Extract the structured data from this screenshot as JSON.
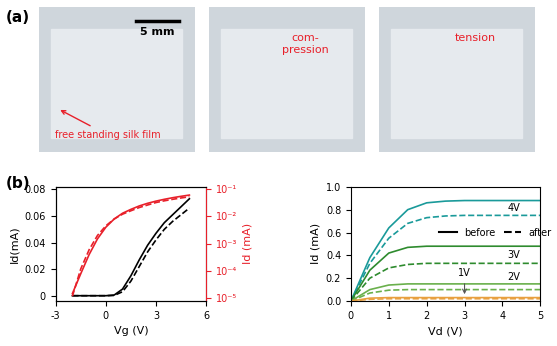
{
  "panel_labels": [
    "(a)",
    "(b)"
  ],
  "photos": [
    {
      "annotations": [
        "5 mm",
        "free standing silk film"
      ]
    },
    {
      "annotations": [
        "com-\npression"
      ]
    },
    {
      "annotations": [
        "tension"
      ]
    }
  ],
  "chart_data": [
    {
      "type": "line",
      "x_label": "Vg (V)",
      "y_label": "Id(mA)",
      "y2_label": "Id (mA)",
      "log": "y2",
      "xlim": [
        -3,
        6
      ],
      "xticks": [
        -3,
        0,
        3,
        6
      ],
      "ylim": [
        -0.004,
        0.082
      ],
      "yticks": [
        0,
        0.02,
        0.04,
        0.06,
        0.08
      ],
      "y2lim": [
        8e-06,
        0.12
      ],
      "y2ticks": [
        {
          "value": 1e-05,
          "label": "10⁻⁵"
        },
        {
          "value": 0.0001,
          "label": "10⁻⁴"
        },
        {
          "value": 0.001,
          "label": "10⁻³"
        },
        {
          "value": 0.01,
          "label": "10⁻²"
        },
        {
          "value": 0.1,
          "label": "10⁻¹"
        }
      ],
      "x": [
        -2,
        -1.5,
        -1,
        -0.5,
        0,
        0.5,
        1,
        1.5,
        2,
        2.5,
        3,
        3.5,
        4,
        4.5,
        5
      ],
      "series": [
        {
          "color": "#000000",
          "line_style": "solid",
          "values": [
            0,
            0,
            0,
            0,
            0,
            0.0005,
            0.005,
            0.015,
            0.027,
            0.038,
            0.047,
            0.055,
            0.061,
            0.067,
            0.073
          ]
        },
        {
          "color": "#000000",
          "line_style": "dashed",
          "values": [
            0,
            0,
            0,
            0,
            0,
            0.0002,
            0.003,
            0.011,
            0.022,
            0.033,
            0.042,
            0.05,
            0.056,
            0.061,
            0.066
          ]
        },
        {
          "color": "#e8202a",
          "line_style": "solid",
          "axis": "y2",
          "values": [
            1.5e-05,
            8e-05,
            0.0004,
            0.0015,
            0.004,
            0.008,
            0.013,
            0.018,
            0.024,
            0.03,
            0.036,
            0.042,
            0.048,
            0.054,
            0.06
          ]
        },
        {
          "color": "#e8202a",
          "line_style": "dashed",
          "axis": "y2",
          "values": [
            1.2e-05,
            0.00012,
            0.0006,
            0.002,
            0.0045,
            0.008,
            0.012,
            0.016,
            0.021,
            0.026,
            0.032,
            0.037,
            0.042,
            0.047,
            0.052
          ]
        }
      ]
    },
    {
      "type": "line",
      "x_label": "Vd (V)",
      "y_label": "Id (mA)",
      "xlim": [
        0,
        5
      ],
      "xticks": [
        0,
        1,
        2,
        3,
        4,
        5
      ],
      "ylim": [
        0,
        1.0
      ],
      "yticks": [
        {
          "value": 0,
          "label": "0.0"
        },
        0.2,
        0.4,
        0.6,
        0.8,
        {
          "value": 1.0,
          "label": "1.0"
        }
      ],
      "legend": "upper left",
      "legend_entries": [
        {
          "name": "before",
          "line_style": "solid"
        },
        {
          "name": "after",
          "line_style": "dashed"
        }
      ],
      "x": [
        0,
        0.5,
        1,
        1.5,
        2,
        2.5,
        3,
        3.5,
        4,
        4.5,
        5
      ],
      "series": [
        {
          "color": "#1a9a9a",
          "line_style": "solid",
          "values": [
            0,
            0.38,
            0.64,
            0.8,
            0.86,
            0.875,
            0.88,
            0.88,
            0.88,
            0.88,
            0.88
          ]
        },
        {
          "color": "#1a9a9a",
          "line_style": "dashed",
          "values": [
            0,
            0.33,
            0.55,
            0.68,
            0.73,
            0.745,
            0.75,
            0.75,
            0.75,
            0.75,
            0.75
          ]
        },
        {
          "color": "#2e8b2e",
          "line_style": "solid",
          "values": [
            0,
            0.27,
            0.42,
            0.47,
            0.48,
            0.48,
            0.48,
            0.48,
            0.48,
            0.48,
            0.48
          ]
        },
        {
          "color": "#2e8b2e",
          "line_style": "dashed",
          "values": [
            0,
            0.2,
            0.29,
            0.32,
            0.33,
            0.33,
            0.33,
            0.33,
            0.33,
            0.33,
            0.33
          ]
        },
        {
          "color": "#6ab04c",
          "line_style": "solid",
          "values": [
            0,
            0.1,
            0.14,
            0.15,
            0.15,
            0.15,
            0.15,
            0.15,
            0.15,
            0.15,
            0.15
          ]
        },
        {
          "color": "#6ab04c",
          "line_style": "dashed",
          "values": [
            0,
            0.07,
            0.095,
            0.1,
            0.1,
            0.1,
            0.1,
            0.1,
            0.1,
            0.1,
            0.1
          ]
        },
        {
          "color": "#e8a040",
          "line_style": "solid",
          "values": [
            0,
            0.025,
            0.03,
            0.03,
            0.03,
            0.03,
            0.03,
            0.03,
            0.03,
            0.03,
            0.03
          ]
        },
        {
          "color": "#e8a040",
          "line_style": "dashed",
          "values": [
            0,
            0.015,
            0.02,
            0.02,
            0.02,
            0.02,
            0.02,
            0.02,
            0.02,
            0.02,
            0.02
          ]
        }
      ],
      "annotations": [
        {
          "text": "4V",
          "x": 4.3,
          "y": 0.815
        },
        {
          "text": "3V",
          "x": 4.3,
          "y": 0.405
        },
        {
          "text": "2V",
          "x": 4.3,
          "y": 0.21
        },
        {
          "text": "1V",
          "x": 3.0,
          "y": 0.2,
          "arrow_to": [
            3.0,
            0.035
          ]
        }
      ]
    }
  ]
}
